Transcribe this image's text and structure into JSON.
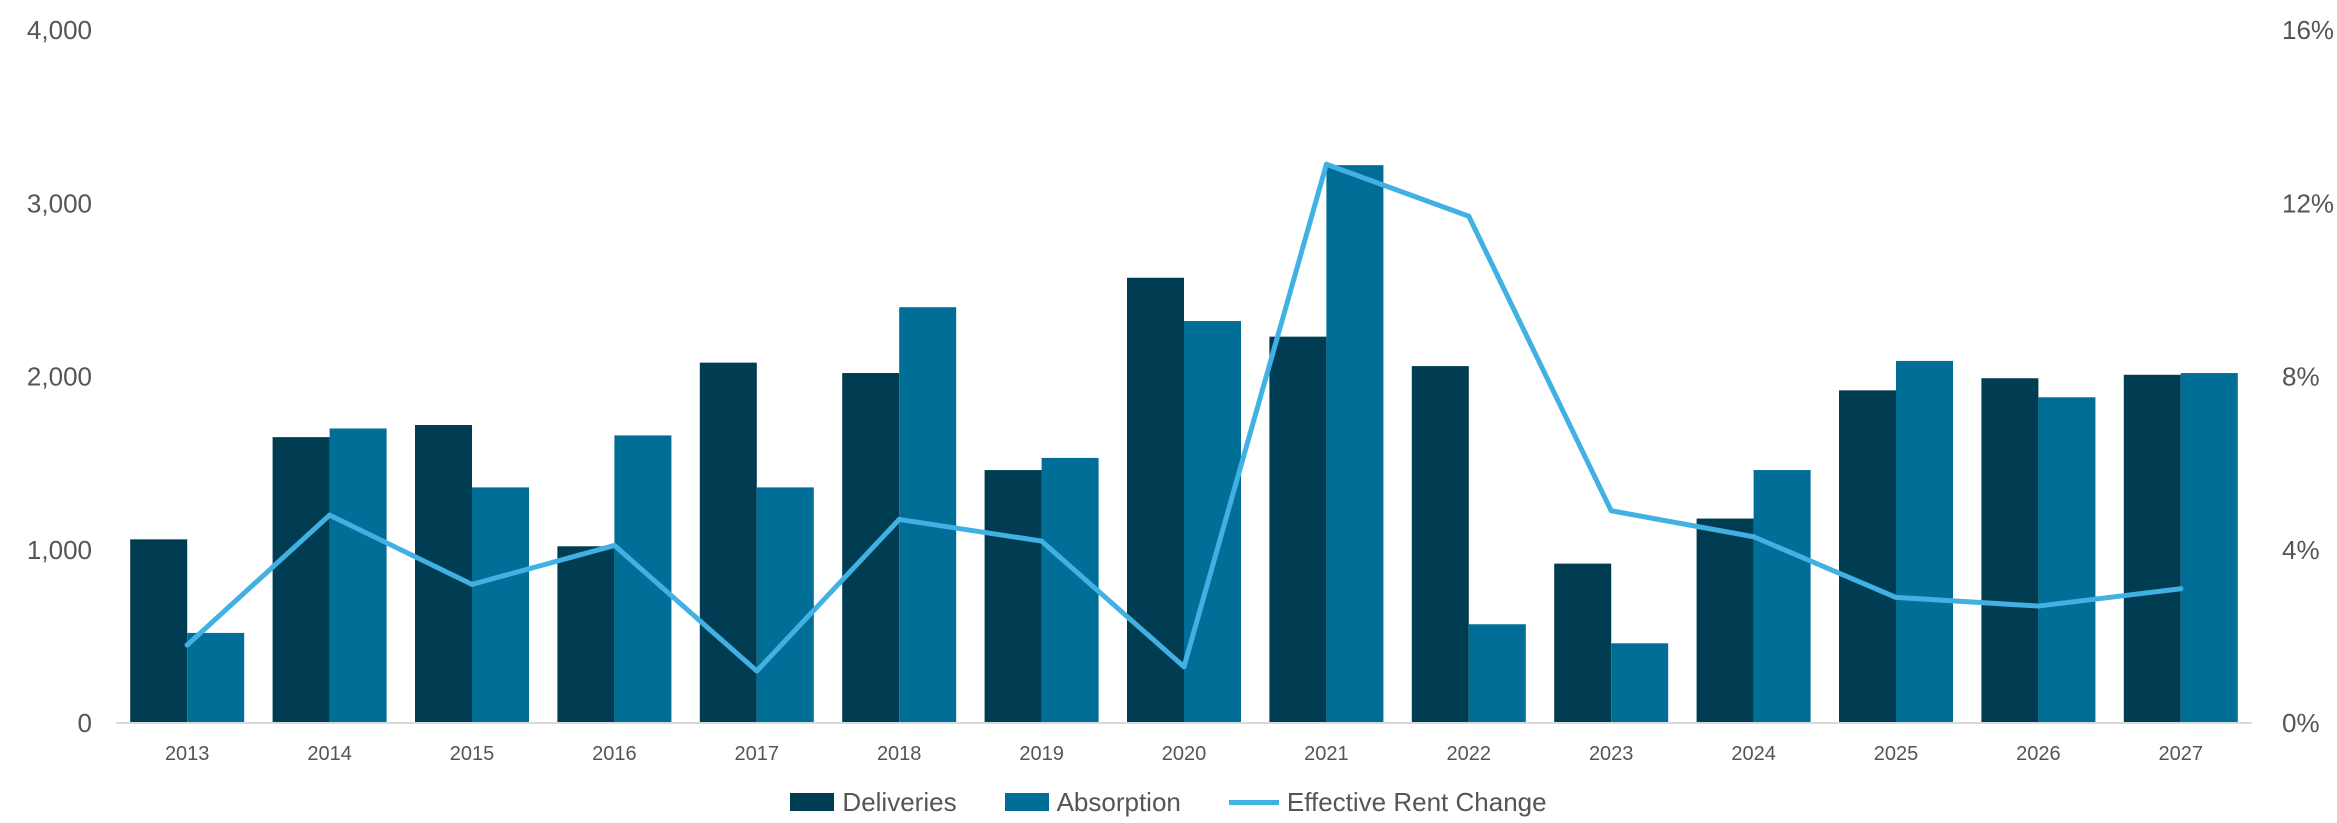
{
  "chart_data": {
    "type": "bar",
    "categories": [
      "2013",
      "2014",
      "2015",
      "2016",
      "2017",
      "2018",
      "2019",
      "2020",
      "2021",
      "2022",
      "2023",
      "2024",
      "2025",
      "2026",
      "2027"
    ],
    "series": [
      {
        "name": "Deliveries",
        "type": "bar",
        "axis": "left",
        "color": "#003d52",
        "values": [
          1060,
          1650,
          1720,
          1020,
          2080,
          2020,
          1460,
          2570,
          2230,
          2060,
          920,
          1180,
          1920,
          1990,
          2010
        ]
      },
      {
        "name": "Absorption",
        "type": "bar",
        "axis": "left",
        "color": "#006e96",
        "values": [
          520,
          1700,
          1360,
          1660,
          1360,
          2400,
          1530,
          2320,
          3220,
          570,
          460,
          1460,
          2090,
          1880,
          2020
        ]
      },
      {
        "name": "Effective Rent Change",
        "type": "line",
        "axis": "right",
        "color": "#41b0e2",
        "values": [
          1.8,
          4.8,
          3.2,
          4.1,
          1.2,
          4.7,
          4.2,
          1.3,
          12.9,
          11.7,
          4.9,
          4.3,
          2.9,
          2.7,
          3.1
        ]
      }
    ],
    "y_left": {
      "min": 0,
      "max": 4000,
      "ticks": [
        "0",
        "1,000",
        "2,000",
        "3,000",
        "4,000"
      ]
    },
    "y_right": {
      "min": 0,
      "max": 16,
      "ticks": [
        "0%",
        "4%",
        "8%",
        "12%",
        "16%"
      ]
    },
    "grid": false,
    "legend_position": "bottom-center"
  },
  "legend": {
    "deliveries_label": "Deliveries",
    "absorption_label": "Absorption",
    "rent_label": "Effective Rent Change"
  }
}
